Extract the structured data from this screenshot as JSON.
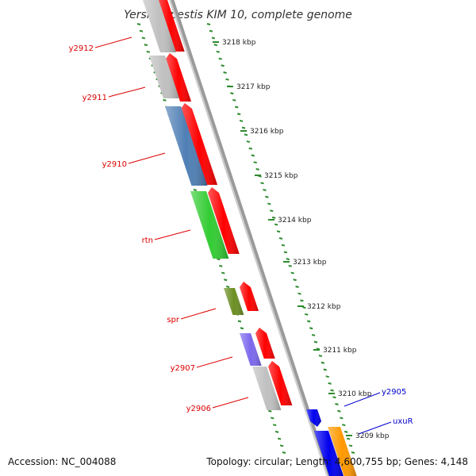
{
  "title": "Yersinia pestis KIM 10, complete genome",
  "footer": {
    "accession": "Accession: NC_004088",
    "topology": "Topology: circular; Length: 4,600,755 bp; Genes: 4,148"
  },
  "ticks": [
    {
      "label": "3218 kbp"
    },
    {
      "label": "3217 kbp"
    },
    {
      "label": "3216 kbp"
    },
    {
      "label": "3215 kbp"
    },
    {
      "label": "3214 kbp"
    },
    {
      "label": "3213 kbp"
    },
    {
      "label": "3212 kbp"
    },
    {
      "label": "3211 kbp"
    },
    {
      "label": "3210 kbp"
    },
    {
      "label": "3209 kbp"
    }
  ],
  "genes": [
    {
      "name": "y2912",
      "color": "#c0c0c0",
      "label_color": "#dd0000"
    },
    {
      "name": "y2911",
      "color": "#c0c0c0",
      "label_color": "#dd0000"
    },
    {
      "name": "y2910",
      "color": "#4f7fb5",
      "label_color": "#dd0000"
    },
    {
      "name": "rtn",
      "color": "#33cc33",
      "label_color": "#dd0000"
    },
    {
      "name": "spr",
      "color": "#6b8e23",
      "label_color": "#dd0000"
    },
    {
      "name": "y2907",
      "color": "#7b68ee",
      "label_color": "#dd0000"
    },
    {
      "name": "y2906",
      "color": "#c0c0c0",
      "label_color": "#dd0000"
    },
    {
      "name": "y2905",
      "color": "#0000ee",
      "label_color": "#0000cc"
    },
    {
      "name": "uxuR",
      "color": "#ff9900",
      "label_color": "#0000cc"
    }
  ],
  "colors": {
    "backbone": "#888888",
    "cds": "#ff0000",
    "tick": "#2e8b2e"
  }
}
